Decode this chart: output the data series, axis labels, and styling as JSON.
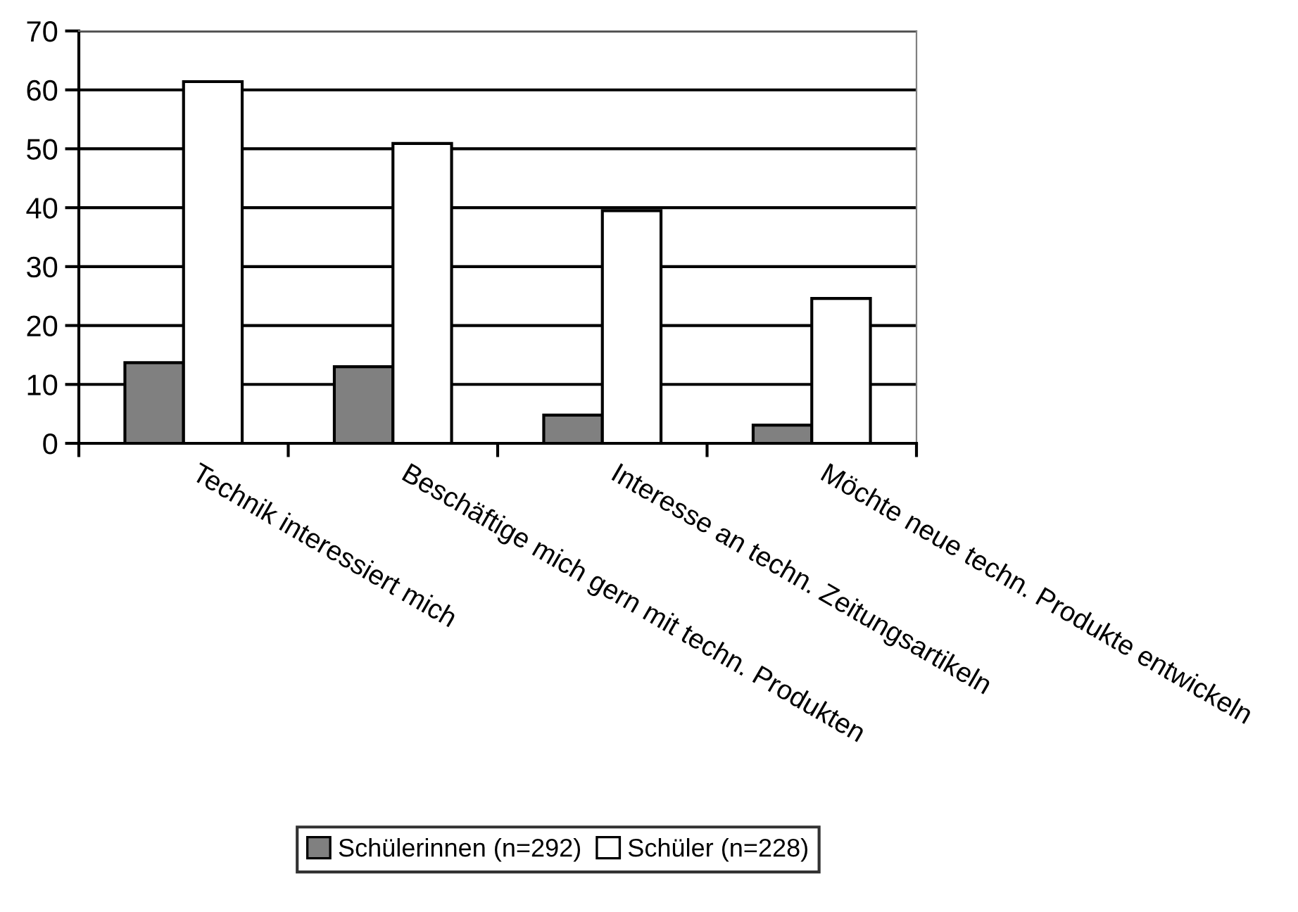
{
  "chart_data": {
    "type": "bar",
    "categories": [
      "Technik interessiert mich",
      "Beschäftige mich gern mit techn. Produkten",
      "Interesse an techn. Zeitungsartikeln",
      "Möchte neue techn. Produkte entwickeln"
    ],
    "series": [
      {
        "name": "Schülerinnen (n=292)",
        "color": "#808080",
        "values": [
          13.7,
          13.0,
          4.8,
          3.1
        ]
      },
      {
        "name": "Schüler (n=228)",
        "color": "#ffffff",
        "values": [
          61.4,
          50.9,
          39.5,
          24.6
        ]
      }
    ],
    "ylim": [
      0,
      70
    ],
    "yticks": [
      0,
      10,
      20,
      30,
      40,
      50,
      60,
      70
    ],
    "grid": "y",
    "legend": "bottom"
  }
}
